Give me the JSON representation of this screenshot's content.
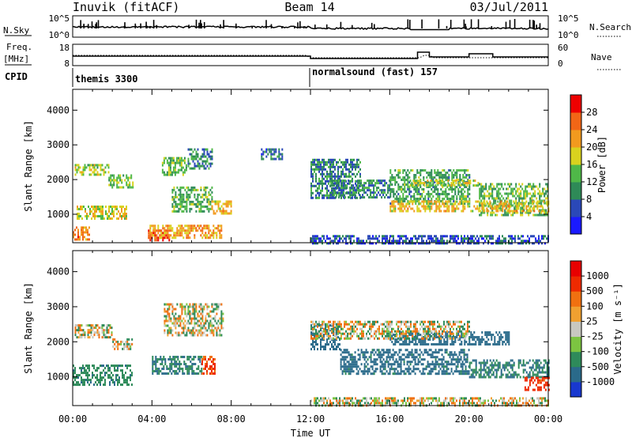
{
  "header": {
    "station": "Inuvik (fitACF)",
    "beam": "Beam 14",
    "date": "03/Jul/2011"
  },
  "top_panels": {
    "nsky_label": "N.Sky",
    "nsky_ticks": [
      "10^5",
      "10^0"
    ],
    "nsearch_label": "N.Search",
    "nsearch_ticks": [
      "10^5",
      "10^0"
    ],
    "freq_label": "Freq.",
    "freq_unit": "[MHz]",
    "freq_ticks": [
      "18",
      "8"
    ],
    "nave_label": "Nave",
    "nave_ticks": [
      "60",
      "0"
    ],
    "cpid_label": "CPID",
    "cpid_modes": [
      {
        "name": "themis 3300",
        "start_hour": 0,
        "end_hour": 12
      },
      {
        "name": "normalsound (fast) 157",
        "start_hour": 12,
        "end_hour": 24
      }
    ]
  },
  "x_axis": {
    "label": "Time UT",
    "ticks": [
      "00:00",
      "04:00",
      "08:00",
      "12:00",
      "16:00",
      "20:00",
      "00:00"
    ]
  },
  "y_axis": {
    "label": "Slant Range [km]",
    "ticks": [
      "1000",
      "2000",
      "3000",
      "4000"
    ]
  },
  "power_colorbar": {
    "label": "Power [dB]",
    "ticks": [
      "28",
      "24",
      "20",
      "16",
      "12",
      "8",
      "4"
    ],
    "colors": [
      "#1a1aff",
      "#2a48b8",
      "#2e8a57",
      "#4fb848",
      "#d9d21e",
      "#f29a1e",
      "#f26616",
      "#ee0000"
    ]
  },
  "velocity_colorbar": {
    "label": "Velocity [m s⁻¹]",
    "ticks": [
      "1000",
      "500",
      "100",
      "25",
      "-25",
      "-100",
      "-500",
      "-1000"
    ],
    "colors": [
      "#1838cf",
      "#2a6a8a",
      "#2e8a5a",
      "#7cc441",
      "#c8c8c0",
      "#f0a030",
      "#f07010",
      "#ee2a00",
      "#e80000"
    ]
  },
  "chart_data": [
    {
      "type": "heatmap",
      "title": "Power",
      "xlabel": "Time UT",
      "ylabel": "Slant Range [km]",
      "xlim": [
        0,
        24
      ],
      "ylim": [
        180,
        4600
      ],
      "colorbar_label": "Power [dB]",
      "value_range": [
        0,
        32
      ],
      "regions": [
        {
          "t": [
            0.1,
            1.8
          ],
          "r": [
            2150,
            2450
          ],
          "v": 16
        },
        {
          "t": [
            1.8,
            3.0
          ],
          "r": [
            1750,
            2150
          ],
          "v": 14
        },
        {
          "t": [
            0.2,
            2.7
          ],
          "r": [
            900,
            1250
          ],
          "v": 18
        },
        {
          "t": [
            0.0,
            0.8
          ],
          "r": [
            250,
            650
          ],
          "v": 24
        },
        {
          "t": [
            3.8,
            4.9
          ],
          "r": [
            230,
            560
          ],
          "v": 30
        },
        {
          "t": [
            4.5,
            5.7
          ],
          "r": [
            2150,
            2650
          ],
          "v": 14
        },
        {
          "t": [
            5.8,
            7.0
          ],
          "r": [
            2300,
            2900
          ],
          "v": 10
        },
        {
          "t": [
            5.0,
            7.0
          ],
          "r": [
            1050,
            1800
          ],
          "v": 13
        },
        {
          "t": [
            7.0,
            8.0
          ],
          "r": [
            1000,
            1400
          ],
          "v": 20
        },
        {
          "t": [
            3.8,
            7.5
          ],
          "r": [
            300,
            700
          ],
          "v": 22
        },
        {
          "t": [
            9.5,
            10.6
          ],
          "r": [
            2600,
            2900
          ],
          "v": 8
        },
        {
          "t": [
            12.0,
            14.5
          ],
          "r": [
            1500,
            2600
          ],
          "v": 9
        },
        {
          "t": [
            13.0,
            16.0
          ],
          "r": [
            1500,
            2000
          ],
          "v": 10
        },
        {
          "t": [
            16.0,
            20.0
          ],
          "r": [
            1300,
            2300
          ],
          "v": 12
        },
        {
          "t": [
            17.0,
            20.5
          ],
          "r": [
            1800,
            2000
          ],
          "v": 17
        },
        {
          "t": [
            20.5,
            24.0
          ],
          "r": [
            1000,
            1900
          ],
          "v": 14
        },
        {
          "t": [
            16.0,
            24.0
          ],
          "r": [
            1100,
            1400
          ],
          "v": 20
        },
        {
          "t": [
            12.0,
            24.0
          ],
          "r": [
            190,
            400
          ],
          "v": 6
        }
      ]
    },
    {
      "type": "heatmap",
      "title": "Velocity",
      "xlabel": "Time UT",
      "ylabel": "Slant Range [km]",
      "xlim": [
        0,
        24
      ],
      "ylim": [
        180,
        4600
      ],
      "colorbar_label": "Velocity [m s⁻¹]",
      "value_range": [
        -1000,
        1000
      ],
      "regions": [
        {
          "t": [
            0.1,
            2.0
          ],
          "r": [
            2100,
            2500
          ],
          "v": 0
        },
        {
          "t": [
            0.0,
            3.0
          ],
          "r": [
            800,
            1350
          ],
          "v": -200
        },
        {
          "t": [
            2.0,
            3.0
          ],
          "r": [
            1800,
            2100
          ],
          "v": 0
        },
        {
          "t": [
            4.0,
            6.5
          ],
          "r": [
            1100,
            1600
          ],
          "v": -300
        },
        {
          "t": [
            6.5,
            7.2
          ],
          "r": [
            1100,
            1600
          ],
          "v": 300
        },
        {
          "t": [
            4.6,
            7.6
          ],
          "r": [
            2200,
            3100
          ],
          "v": 0
        },
        {
          "t": [
            12.0,
            13.5
          ],
          "r": [
            1800,
            2500
          ],
          "v": -600
        },
        {
          "t": [
            13.5,
            20.0
          ],
          "r": [
            1100,
            1800
          ],
          "v": -400
        },
        {
          "t": [
            16.0,
            22.0
          ],
          "r": [
            1900,
            2300
          ],
          "v": -500
        },
        {
          "t": [
            12.0,
            20.0
          ],
          "r": [
            2100,
            2600
          ],
          "v": 0
        },
        {
          "t": [
            20.0,
            24.0
          ],
          "r": [
            1000,
            1500
          ],
          "v": -300
        },
        {
          "t": [
            22.8,
            24.0
          ],
          "r": [
            600,
            1000
          ],
          "v": 400
        },
        {
          "t": [
            12.0,
            24.0
          ],
          "r": [
            190,
            420
          ],
          "v": 0
        }
      ]
    }
  ]
}
